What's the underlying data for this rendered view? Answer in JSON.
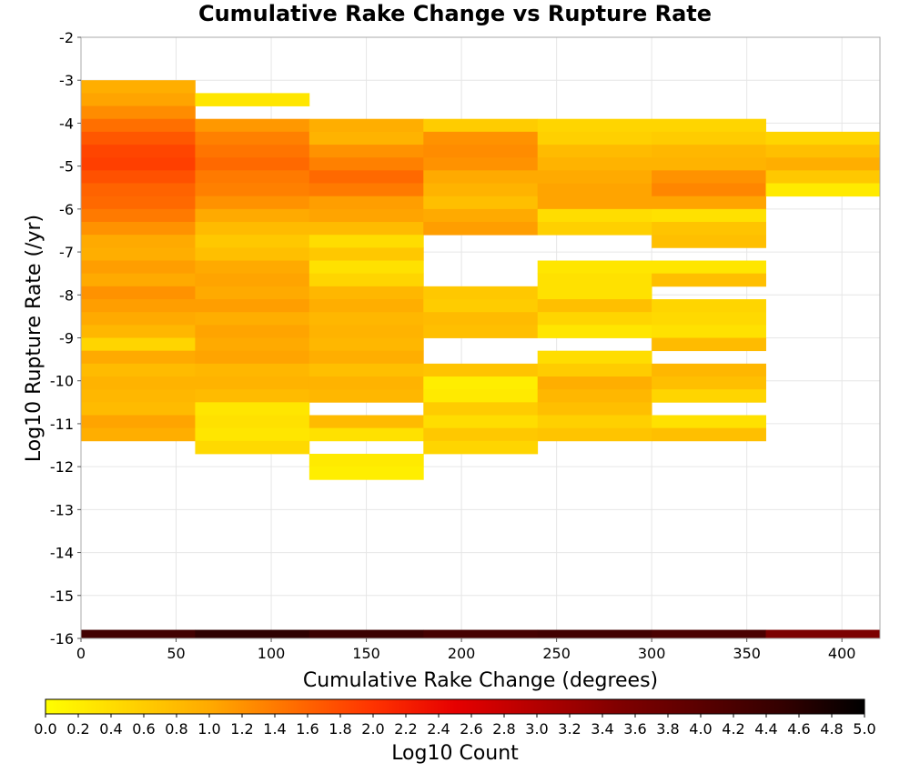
{
  "chart_data": {
    "type": "heatmap",
    "title": "Cumulative Rake Change vs Rupture Rate",
    "xlabel": "Cumulative Rake Change (degrees)",
    "ylabel": "Log10 Rupture Rate (/yr)",
    "colorbar_label": "Log10 Count",
    "xlim": [
      0,
      420
    ],
    "ylim": [
      -16,
      -2
    ],
    "x_ticks": [
      "0",
      "50",
      "100",
      "150",
      "200",
      "250",
      "300",
      "350",
      "400"
    ],
    "x_tick_values": [
      0,
      50,
      100,
      150,
      200,
      250,
      300,
      350,
      400
    ],
    "y_ticks": [
      "-16",
      "-15",
      "-14",
      "-13",
      "-12",
      "-11",
      "-10",
      "-9",
      "-8",
      "-7",
      "-6",
      "-5",
      "-4",
      "-3",
      "-2"
    ],
    "y_tick_values": [
      -16,
      -15,
      -14,
      -13,
      -12,
      -11,
      -10,
      -9,
      -8,
      -7,
      -6,
      -5,
      -4,
      -3,
      -2
    ],
    "colorbar_ticks": [
      "0.0",
      "0.2",
      "0.4",
      "0.6",
      "0.8",
      "1.0",
      "1.2",
      "1.4",
      "1.6",
      "1.8",
      "2.0",
      "2.2",
      "2.4",
      "2.6",
      "2.8",
      "3.0",
      "3.2",
      "3.4",
      "3.6",
      "3.8",
      "4.0",
      "4.2",
      "4.4",
      "4.6",
      "4.8",
      "5.0"
    ],
    "colorbar_range": [
      0,
      5
    ],
    "colormap": [
      {
        "value": 0.0,
        "color": "#ffff00"
      },
      {
        "value": 1.0,
        "color": "#ffaa00"
      },
      {
        "value": 2.0,
        "color": "#ff3300"
      },
      {
        "value": 2.5,
        "color": "#e60000"
      },
      {
        "value": 3.5,
        "color": "#800000"
      },
      {
        "value": 4.5,
        "color": "#330000"
      },
      {
        "value": 5.0,
        "color": "#000000"
      }
    ],
    "grid": true,
    "x_bin_width": 60,
    "y_bin_height": 0.3,
    "columns": [
      {
        "x": 0,
        "cells": [
          [
            -3.3,
            0.95
          ],
          [
            -3.6,
            1.05
          ],
          [
            -3.9,
            1.25
          ],
          [
            -4.2,
            1.5
          ],
          [
            -4.5,
            1.7
          ],
          [
            -4.8,
            1.85
          ],
          [
            -5.1,
            1.9
          ],
          [
            -5.4,
            1.75
          ],
          [
            -5.7,
            1.6
          ],
          [
            -6.0,
            1.55
          ],
          [
            -6.3,
            1.4
          ],
          [
            -6.6,
            1.2
          ],
          [
            -6.9,
            1.0
          ],
          [
            -7.2,
            0.95
          ],
          [
            -7.5,
            1.1
          ],
          [
            -7.8,
            1.0
          ],
          [
            -8.1,
            1.2
          ],
          [
            -8.4,
            1.1
          ],
          [
            -8.7,
            1.0
          ],
          [
            -9.0,
            0.85
          ],
          [
            -9.3,
            0.5
          ],
          [
            -9.6,
            1.0
          ],
          [
            -9.9,
            0.8
          ],
          [
            -10.2,
            0.9
          ],
          [
            -10.5,
            0.85
          ],
          [
            -10.8,
            0.8
          ],
          [
            -11.1,
            1.05
          ],
          [
            -11.4,
            0.95
          ]
        ]
      },
      {
        "x": 60,
        "cells": [
          [
            -3.6,
            0.3
          ],
          [
            -4.2,
            1.15
          ],
          [
            -4.5,
            1.35
          ],
          [
            -4.8,
            1.45
          ],
          [
            -5.1,
            1.55
          ],
          [
            -5.4,
            1.4
          ],
          [
            -5.7,
            1.35
          ],
          [
            -6.0,
            1.2
          ],
          [
            -6.3,
            1.0
          ],
          [
            -6.6,
            0.8
          ],
          [
            -6.9,
            0.65
          ],
          [
            -7.2,
            0.75
          ],
          [
            -7.5,
            1.0
          ],
          [
            -7.8,
            1.05
          ],
          [
            -8.1,
            1.0
          ],
          [
            -8.4,
            1.1
          ],
          [
            -8.7,
            0.95
          ],
          [
            -9.0,
            1.05
          ],
          [
            -9.3,
            1.0
          ],
          [
            -9.6,
            1.05
          ],
          [
            -9.9,
            0.85
          ],
          [
            -10.2,
            0.9
          ],
          [
            -10.5,
            0.8
          ],
          [
            -10.8,
            0.3
          ],
          [
            -11.1,
            0.35
          ],
          [
            -11.4,
            0.3
          ],
          [
            -11.7,
            0.45
          ]
        ]
      },
      {
        "x": 120,
        "cells": [
          [
            -4.2,
            0.95
          ],
          [
            -4.5,
            0.9
          ],
          [
            -4.8,
            1.2
          ],
          [
            -5.1,
            1.35
          ],
          [
            -5.4,
            1.55
          ],
          [
            -5.7,
            1.4
          ],
          [
            -6.0,
            1.1
          ],
          [
            -6.3,
            1.05
          ],
          [
            -6.6,
            0.8
          ],
          [
            -6.9,
            0.4
          ],
          [
            -7.2,
            0.65
          ],
          [
            -7.5,
            0.35
          ],
          [
            -7.8,
            0.5
          ],
          [
            -8.1,
            0.85
          ],
          [
            -8.4,
            0.95
          ],
          [
            -8.7,
            0.85
          ],
          [
            -9.0,
            0.9
          ],
          [
            -9.3,
            0.85
          ],
          [
            -9.6,
            0.95
          ],
          [
            -9.9,
            0.75
          ],
          [
            -10.2,
            0.9
          ],
          [
            -10.5,
            0.85
          ],
          [
            -11.1,
            0.8
          ],
          [
            -11.4,
            0.35
          ],
          [
            -12.0,
            0.25
          ],
          [
            -12.3,
            0.2
          ]
        ]
      },
      {
        "x": 180,
        "cells": [
          [
            -4.2,
            0.6
          ],
          [
            -4.5,
            1.2
          ],
          [
            -4.8,
            1.25
          ],
          [
            -5.1,
            1.2
          ],
          [
            -5.4,
            1.0
          ],
          [
            -5.7,
            0.9
          ],
          [
            -6.0,
            0.75
          ],
          [
            -6.3,
            1.0
          ],
          [
            -6.6,
            1.1
          ],
          [
            -8.1,
            0.65
          ],
          [
            -8.4,
            0.6
          ],
          [
            -8.7,
            0.8
          ],
          [
            -9.0,
            0.75
          ],
          [
            -9.9,
            0.7
          ],
          [
            -10.2,
            0.2
          ],
          [
            -10.5,
            0.25
          ],
          [
            -10.8,
            0.6
          ],
          [
            -11.1,
            0.4
          ],
          [
            -11.4,
            0.65
          ],
          [
            -11.7,
            0.5
          ]
        ]
      },
      {
        "x": 240,
        "cells": [
          [
            -4.2,
            0.5
          ],
          [
            -4.5,
            0.55
          ],
          [
            -4.8,
            0.8
          ],
          [
            -5.1,
            0.9
          ],
          [
            -5.4,
            1.0
          ],
          [
            -5.7,
            1.05
          ],
          [
            -6.0,
            1.05
          ],
          [
            -6.3,
            0.4
          ],
          [
            -6.6,
            0.55
          ],
          [
            -7.5,
            0.3
          ],
          [
            -7.8,
            0.35
          ],
          [
            -8.1,
            0.35
          ],
          [
            -8.4,
            0.75
          ],
          [
            -8.7,
            0.5
          ],
          [
            -9.0,
            0.3
          ],
          [
            -9.6,
            0.4
          ],
          [
            -9.9,
            0.6
          ],
          [
            -10.2,
            0.95
          ],
          [
            -10.5,
            0.85
          ],
          [
            -10.8,
            0.75
          ],
          [
            -11.1,
            0.55
          ],
          [
            -11.4,
            0.7
          ]
        ]
      },
      {
        "x": 300,
        "cells": [
          [
            -4.2,
            0.5
          ],
          [
            -4.5,
            0.6
          ],
          [
            -4.8,
            0.85
          ],
          [
            -5.1,
            0.9
          ],
          [
            -5.4,
            1.2
          ],
          [
            -5.7,
            1.3
          ],
          [
            -6.0,
            1.05
          ],
          [
            -6.3,
            0.35
          ],
          [
            -6.6,
            0.7
          ],
          [
            -6.9,
            0.75
          ],
          [
            -7.5,
            0.3
          ],
          [
            -7.8,
            0.75
          ],
          [
            -8.4,
            0.5
          ],
          [
            -8.7,
            0.45
          ],
          [
            -9.0,
            0.35
          ],
          [
            -9.3,
            0.8
          ],
          [
            -9.9,
            0.85
          ],
          [
            -10.2,
            0.75
          ],
          [
            -10.5,
            0.5
          ],
          [
            -11.1,
            0.35
          ],
          [
            -11.4,
            0.75
          ]
        ]
      },
      {
        "x": 360,
        "cells": [
          [
            -4.5,
            0.5
          ],
          [
            -4.8,
            0.75
          ],
          [
            -5.1,
            0.95
          ],
          [
            -5.4,
            0.65
          ],
          [
            -5.7,
            0.25
          ]
        ]
      }
    ],
    "bottom_row": {
      "y": -16.0,
      "height": 0.2,
      "cells": [
        {
          "x": 0,
          "value": 4.3
        },
        {
          "x": 60,
          "value": 4.55
        },
        {
          "x": 120,
          "value": 4.4
        },
        {
          "x": 180,
          "value": 4.25
        },
        {
          "x": 240,
          "value": 4.3
        },
        {
          "x": 300,
          "value": 4.2
        },
        {
          "x": 360,
          "value": 3.55
        }
      ]
    }
  }
}
